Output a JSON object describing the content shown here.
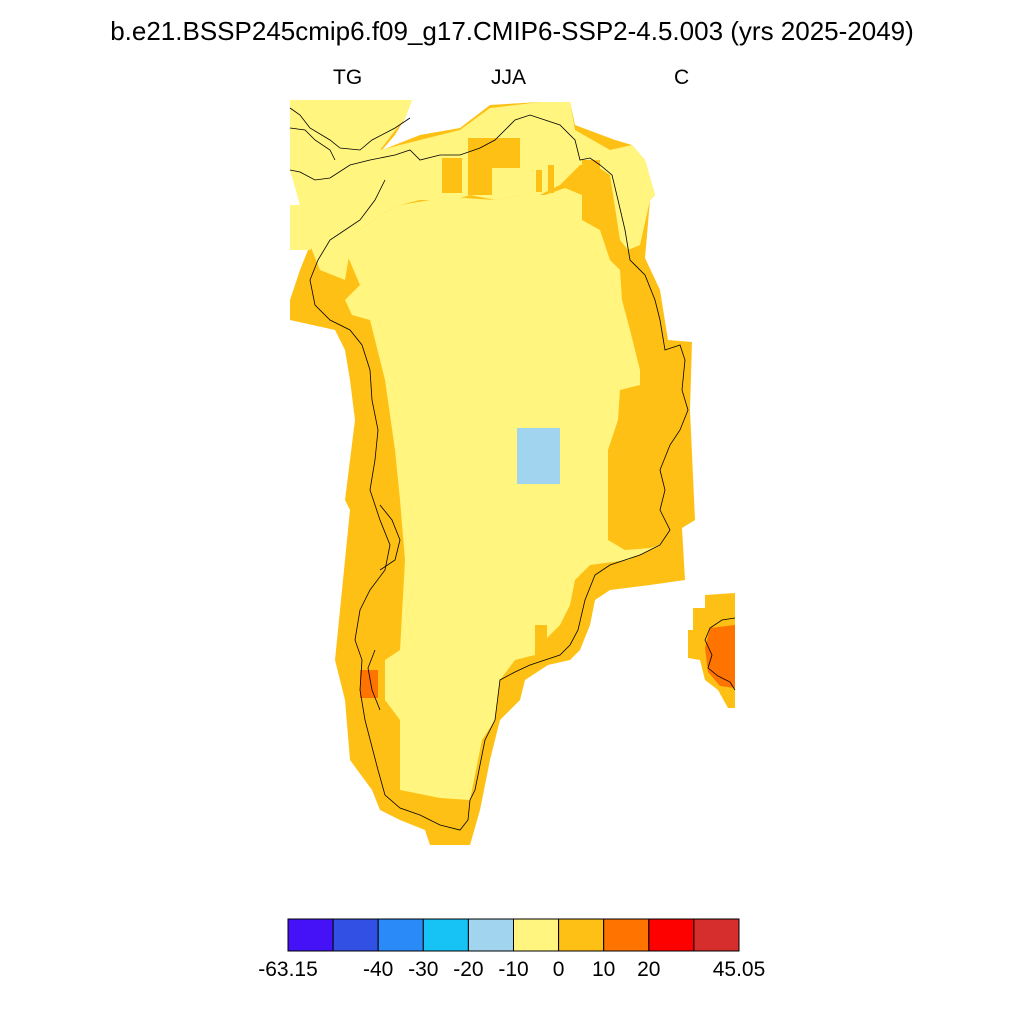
{
  "title": "b.e21.BSSP245cmip6.f09_g17.CMIP6-SSP2-4.5.003 (yrs 2025-2049)",
  "subtitles": {
    "left": "TG",
    "center": "JJA",
    "right": "C"
  },
  "colors": {
    "light_yellow": "#fff57f",
    "amber": "#fec014",
    "orange": "#ff7400",
    "light_blue": "#a1d4ef",
    "coastline": "#000000"
  },
  "colorbar": {
    "colors": [
      "#4512f8",
      "#3250e4",
      "#2a8af8",
      "#17c3f5",
      "#a1d4ef",
      "#fff57f",
      "#fec014",
      "#ff7400",
      "#fd0000",
      "#d62d2d"
    ],
    "labels": [
      "-63.15",
      "-40",
      "-30",
      "-20",
      "-10",
      "0",
      "10",
      "20",
      "45.05"
    ]
  }
}
